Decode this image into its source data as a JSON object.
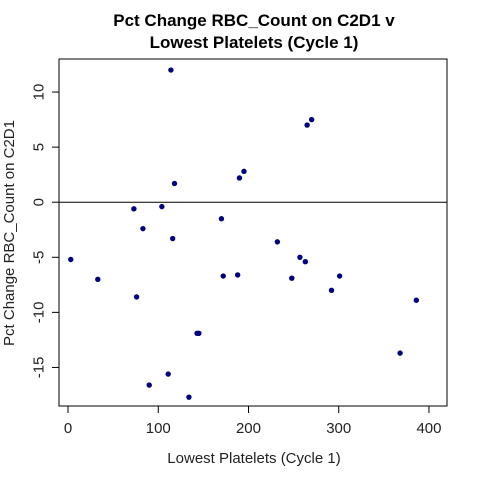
{
  "chart_data": {
    "type": "scatter",
    "title_lines": [
      "Pct Change RBC_Count on C2D1 v",
      "Lowest Platelets (Cycle 1)"
    ],
    "xlabel": "Lowest Platelets (Cycle 1)",
    "ylabel": "Pct Change RBC_Count on C2D1",
    "xlim": [
      -10,
      420
    ],
    "ylim": [
      -18.5,
      13
    ],
    "x_ticks": [
      0,
      100,
      200,
      300,
      400
    ],
    "y_ticks": [
      -15,
      -10,
      -5,
      0,
      5,
      10
    ],
    "reference_line_y": 0,
    "grid": false,
    "point_color": "#00007f",
    "points": [
      {
        "x": 3,
        "y": -5.2
      },
      {
        "x": 33,
        "y": -7.0
      },
      {
        "x": 73,
        "y": -0.6
      },
      {
        "x": 76,
        "y": -8.6
      },
      {
        "x": 83,
        "y": -2.4
      },
      {
        "x": 90,
        "y": -16.6
      },
      {
        "x": 104,
        "y": -0.4
      },
      {
        "x": 111,
        "y": -15.6
      },
      {
        "x": 114,
        "y": 12.0
      },
      {
        "x": 116,
        "y": -3.3
      },
      {
        "x": 118,
        "y": 1.7
      },
      {
        "x": 134,
        "y": -17.7
      },
      {
        "x": 143,
        "y": -11.9
      },
      {
        "x": 145,
        "y": -11.9
      },
      {
        "x": 170,
        "y": -1.5
      },
      {
        "x": 172,
        "y": -6.7
      },
      {
        "x": 188,
        "y": -6.6
      },
      {
        "x": 190,
        "y": 2.2
      },
      {
        "x": 195,
        "y": 2.8
      },
      {
        "x": 232,
        "y": -3.6
      },
      {
        "x": 248,
        "y": -6.9
      },
      {
        "x": 257,
        "y": -5.0
      },
      {
        "x": 263,
        "y": -5.4
      },
      {
        "x": 265,
        "y": 7.0
      },
      {
        "x": 270,
        "y": 7.5
      },
      {
        "x": 292,
        "y": -8.0
      },
      {
        "x": 301,
        "y": -6.7
      },
      {
        "x": 368,
        "y": -13.7
      },
      {
        "x": 386,
        "y": -8.9
      }
    ]
  }
}
